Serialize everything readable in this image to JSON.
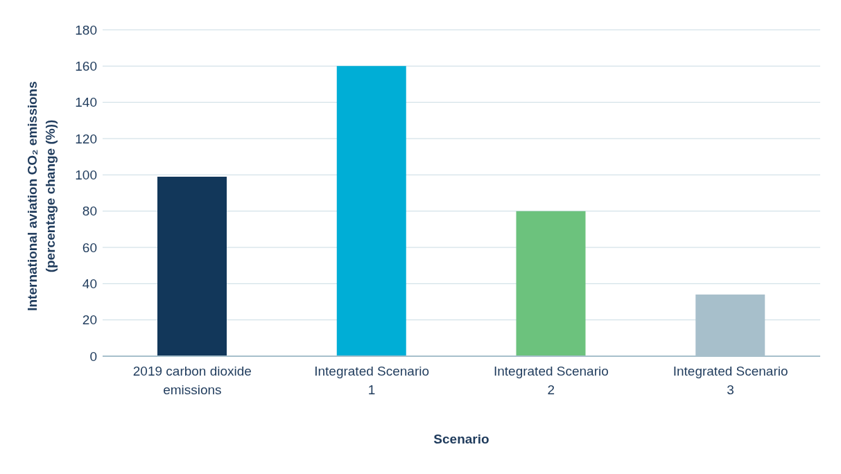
{
  "chart_data": {
    "type": "bar",
    "xlabel": "Scenario",
    "ylabel": "International aviation CO₂ emissions\n(percentage change (%))",
    "categories": [
      "2019 carbon dioxide emissions",
      "Integrated Scenario 1",
      "Integrated Scenario 2",
      "Integrated Scenario 3"
    ],
    "values": [
      99,
      160,
      80,
      34
    ],
    "colors": [
      "#12375a",
      "#00aed6",
      "#6cc27d",
      "#a7bfcb"
    ],
    "ylim": [
      0,
      180
    ],
    "yticks": [
      0,
      20,
      40,
      60,
      80,
      100,
      120,
      140,
      160,
      180
    ],
    "grid": "y",
    "legend": false
  }
}
